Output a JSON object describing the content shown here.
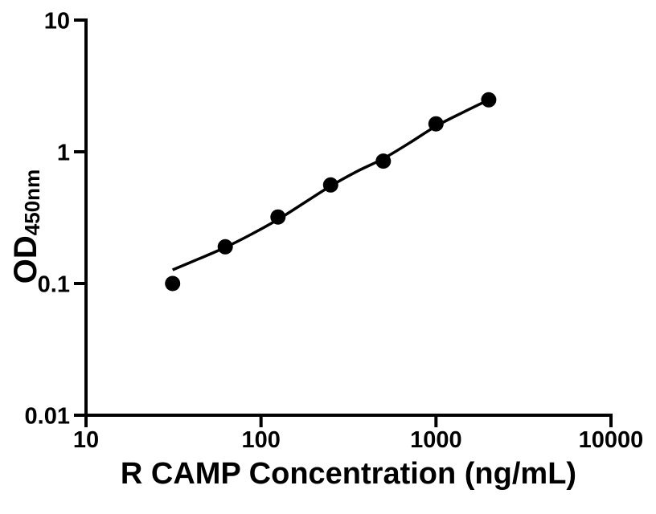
{
  "page": {
    "background": "#ffffff",
    "foreground": "#000000"
  },
  "chart_data": {
    "type": "scatter",
    "title": "",
    "xlabel": "R CAMP Concentration (ng/mL)",
    "ylabel_main": "OD",
    "ylabel_sub": "450nm",
    "x_scale": "log10",
    "y_scale": "log10",
    "xlim": [
      10,
      10000
    ],
    "ylim": [
      0.01,
      10
    ],
    "x_tick_values": [
      10,
      100,
      1000,
      10000
    ],
    "x_tick_labels": [
      "10",
      "100",
      "1000",
      "10000"
    ],
    "y_tick_values": [
      0.01,
      0.1,
      1,
      10
    ],
    "y_tick_labels": [
      "0.01",
      "0.1",
      "1",
      "10"
    ],
    "grid": false,
    "legend": "none",
    "point_color": "#000000",
    "line_color": "#000000",
    "axis_color": "#000000",
    "series": [
      {
        "name": "R CAMP standard points",
        "marker": "filled-circle",
        "x": [
          31.25,
          62.5,
          125,
          250,
          500,
          1000,
          2000
        ],
        "y": [
          0.1,
          0.19,
          0.32,
          0.56,
          0.85,
          1.63,
          2.48
        ]
      }
    ],
    "fit_curve": {
      "name": "4PL fit curve",
      "x": [
        31.25,
        44.19,
        62.5,
        88.39,
        125,
        176.78,
        250,
        353.55,
        500,
        707.11,
        1000,
        1414.21,
        2000
      ],
      "y": [
        0.127,
        0.154,
        0.188,
        0.237,
        0.306,
        0.41,
        0.55,
        0.71,
        0.887,
        1.17,
        1.566,
        1.982,
        2.478
      ]
    }
  }
}
